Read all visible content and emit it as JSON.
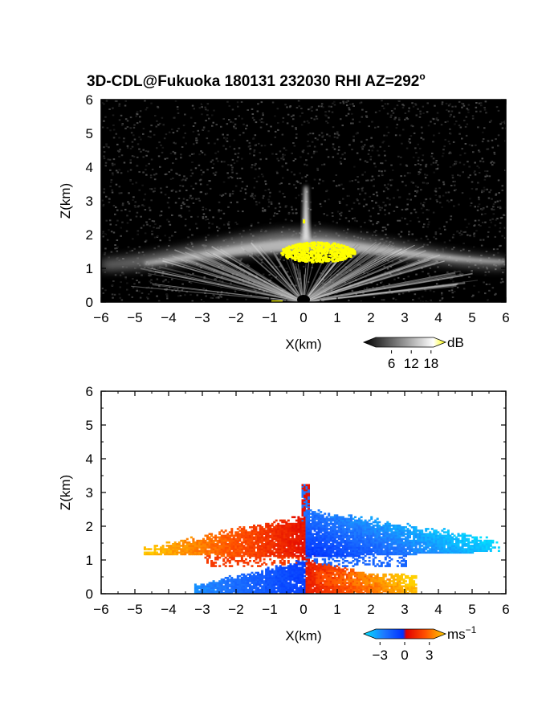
{
  "title": "3D-CDL@Fukuoka 180131 232030 RHI AZ=292",
  "title_degree": "o",
  "chart_data": [
    {
      "type": "heatmap",
      "panel": "top",
      "quantity": "backscatter intensity",
      "xlabel": "X(km)",
      "ylabel": "Z(km)",
      "xlim": [
        -6,
        6
      ],
      "ylim": [
        0,
        6
      ],
      "xticks": [
        -6,
        -5,
        -4,
        -3,
        -2,
        -1,
        0,
        1,
        2,
        3,
        4,
        5,
        6
      ],
      "yticks": [
        0,
        1,
        2,
        3,
        4,
        5,
        6
      ],
      "colorbar": {
        "unit": "dB",
        "ticks": [
          6,
          12,
          18
        ],
        "range": [
          0,
          20
        ],
        "colors": [
          "#000000",
          "#ffffff",
          "#ffff00"
        ]
      },
      "background": "#000000",
      "features": {
        "cloud_layer_height_km": [
          1.1,
          1.7
        ],
        "cloud_layer_extent_km": [
          -6,
          6
        ],
        "high_echo_region": {
          "x": [
            -0.7,
            1.5
          ],
          "z": [
            1.2,
            1.8
          ],
          "color": "#ffff00"
        },
        "vertical_spike_top_km": 3.4
      }
    },
    {
      "type": "heatmap",
      "panel": "bottom",
      "quantity": "Doppler velocity",
      "xlabel": "X(km)",
      "ylabel": "Z(km)",
      "xlim": [
        -6,
        6
      ],
      "ylim": [
        0,
        6
      ],
      "xticks": [
        -6,
        -5,
        -4,
        -3,
        -2,
        -1,
        0,
        1,
        2,
        3,
        4,
        5,
        6
      ],
      "yticks": [
        0,
        1,
        2,
        3,
        4,
        5,
        6
      ],
      "colorbar": {
        "unit": "ms",
        "unit_exponent": "−1",
        "ticks": [
          "−3",
          "0",
          "3"
        ],
        "range": [
          -4,
          4
        ],
        "colors": [
          "#00e5ff",
          "#1e78ff",
          "#0030ff",
          "#e00000",
          "#ff5000",
          "#ffd000"
        ]
      },
      "background": "#ffffff",
      "features": {
        "upper_negative_lobe": {
          "x": [
            0,
            5.8
          ],
          "z": [
            1.0,
            2.5
          ]
        },
        "upper_positive_lobe": {
          "x": [
            -4.8,
            0
          ],
          "z": [
            1.0,
            2.3
          ]
        },
        "lower_negative_lobe": {
          "x": [
            -3.3,
            0
          ],
          "z": [
            0,
            1.0
          ]
        },
        "lower_positive_lobe": {
          "x": [
            0,
            3.3
          ],
          "z": [
            0,
            1.0
          ]
        },
        "spike_top_km": 3.2
      }
    }
  ]
}
